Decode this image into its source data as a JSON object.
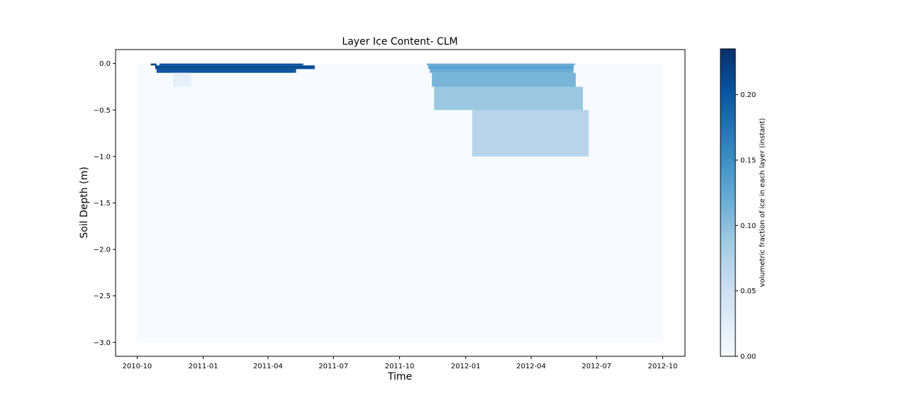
{
  "chart_data": {
    "type": "heatmap",
    "title": "Layer Ice Content- CLM",
    "xlabel": "Time",
    "ylabel": "Soil Depth (m)",
    "x_ticks": [
      "2010-10",
      "2011-01",
      "2011-04",
      "2011-07",
      "2011-10",
      "2012-01",
      "2012-04",
      "2012-07",
      "2012-10"
    ],
    "y_ticks": [
      "0.0",
      "-0.5",
      "-1.0",
      "-1.5",
      "-2.0",
      "-2.5",
      "-3.0"
    ],
    "y_tick_values": [
      0.0,
      -0.5,
      -1.0,
      -1.5,
      -2.0,
      -2.5,
      -3.0
    ],
    "xlim": [
      "2010-09-01",
      "2012-11-01"
    ],
    "ylim": [
      -3.15,
      0.15
    ],
    "data_extent": {
      "x": [
        "2010-10-01",
        "2012-10-01"
      ],
      "y": [
        -3.0,
        0.0
      ]
    },
    "colormap": "Blues",
    "colorbar": {
      "label": "volumetric fraction of ice in each layer (instant)",
      "range": [
        0.0,
        0.235
      ],
      "ticks": [
        "0.00",
        "0.05",
        "0.10",
        "0.15",
        "0.20"
      ],
      "tick_values": [
        0.0,
        0.05,
        0.1,
        0.15,
        0.2
      ]
    },
    "layers": [
      {
        "top": 0.0,
        "bottom": -0.02,
        "segments": [
          {
            "start": "2010-10-20",
            "end": "2010-10-28",
            "value": 0.22
          },
          {
            "start": "2010-11-01",
            "end": "2011-05-20",
            "value": 0.2
          },
          {
            "start": "2011-11-08",
            "end": "2012-06-01",
            "value": 0.12
          }
        ]
      },
      {
        "top": -0.02,
        "bottom": -0.06,
        "segments": [
          {
            "start": "2010-10-26",
            "end": "2011-06-05",
            "value": 0.21
          },
          {
            "start": "2011-11-10",
            "end": "2012-05-30",
            "value": 0.13
          }
        ]
      },
      {
        "top": -0.06,
        "bottom": -0.1,
        "segments": [
          {
            "start": "2010-10-28",
            "end": "2011-05-10",
            "value": 0.2
          },
          {
            "start": "2011-11-12",
            "end": "2012-05-30",
            "value": 0.12
          }
        ]
      },
      {
        "top": -0.1,
        "bottom": -0.25,
        "segments": [
          {
            "start": "2010-11-20",
            "end": "2010-12-15",
            "value": 0.02
          },
          {
            "start": "2011-11-15",
            "end": "2012-06-02",
            "value": 0.11
          }
        ]
      },
      {
        "top": -0.25,
        "bottom": -0.5,
        "segments": [
          {
            "start": "2011-11-18",
            "end": "2012-06-12",
            "value": 0.09
          }
        ]
      },
      {
        "top": -0.5,
        "bottom": -1.0,
        "segments": [
          {
            "start": "2012-01-10",
            "end": "2012-06-20",
            "value": 0.07
          }
        ]
      }
    ]
  }
}
